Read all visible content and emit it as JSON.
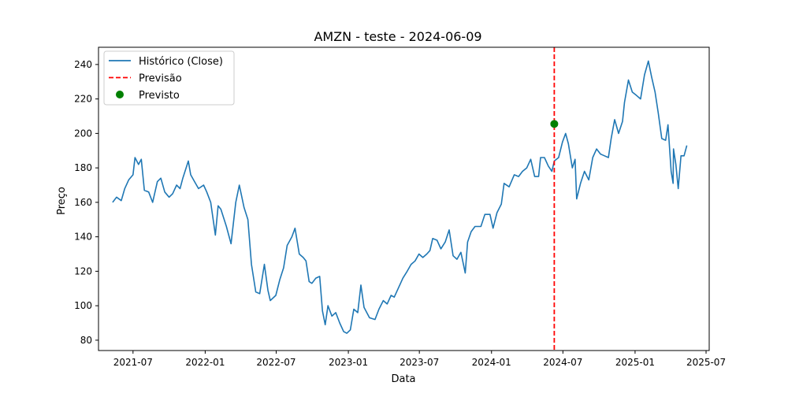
{
  "chart_data": {
    "type": "line",
    "title": "AMZN - teste - 2024-06-09",
    "xlabel": "Data",
    "ylabel": "Preço",
    "xlim": [
      "2021-04-04",
      "2025-07-09"
    ],
    "ylim": [
      74,
      250
    ],
    "x_ticks": [
      {
        "date": "2021-07-01",
        "label": "2021-07"
      },
      {
        "date": "2022-01-01",
        "label": "2022-01"
      },
      {
        "date": "2022-07-01",
        "label": "2022-07"
      },
      {
        "date": "2023-01-01",
        "label": "2023-01"
      },
      {
        "date": "2023-07-01",
        "label": "2023-07"
      },
      {
        "date": "2024-01-01",
        "label": "2024-01"
      },
      {
        "date": "2024-07-01",
        "label": "2024-07"
      },
      {
        "date": "2025-01-01",
        "label": "2025-01"
      },
      {
        "date": "2025-07-01",
        "label": "2025-07"
      }
    ],
    "y_ticks": [
      80,
      100,
      120,
      140,
      160,
      180,
      200,
      220,
      240
    ],
    "grid": false,
    "legend_position": "top-left",
    "legend": [
      {
        "label": "Histórico (Close)",
        "kind": "line",
        "color": "#1f77b4"
      },
      {
        "label": "Previsão",
        "kind": "dashed",
        "color": "#ff0000"
      },
      {
        "label": "Previsto",
        "kind": "marker",
        "color": "#008000"
      }
    ],
    "series": [
      {
        "name": "Histórico (Close)",
        "color": "#1f77b4",
        "points": [
          [
            "2021-05-10",
            160
          ],
          [
            "2021-05-20",
            163
          ],
          [
            "2021-06-01",
            161
          ],
          [
            "2021-06-10",
            168
          ],
          [
            "2021-06-20",
            173
          ],
          [
            "2021-07-01",
            176
          ],
          [
            "2021-07-06",
            186
          ],
          [
            "2021-07-15",
            182
          ],
          [
            "2021-07-22",
            185
          ],
          [
            "2021-07-30",
            167
          ],
          [
            "2021-08-10",
            166
          ],
          [
            "2021-08-20",
            160
          ],
          [
            "2021-09-01",
            172
          ],
          [
            "2021-09-10",
            174
          ],
          [
            "2021-09-20",
            166
          ],
          [
            "2021-10-01",
            163
          ],
          [
            "2021-10-10",
            165
          ],
          [
            "2021-10-20",
            170
          ],
          [
            "2021-10-29",
            168
          ],
          [
            "2021-11-05",
            174
          ],
          [
            "2021-11-19",
            184
          ],
          [
            "2021-11-25",
            176
          ],
          [
            "2021-12-05",
            172
          ],
          [
            "2021-12-15",
            168
          ],
          [
            "2021-12-28",
            170
          ],
          [
            "2022-01-05",
            166
          ],
          [
            "2022-01-15",
            160
          ],
          [
            "2022-01-27",
            141
          ],
          [
            "2022-02-03",
            158
          ],
          [
            "2022-02-10",
            156
          ],
          [
            "2022-02-24",
            146
          ],
          [
            "2022-03-08",
            136
          ],
          [
            "2022-03-20",
            160
          ],
          [
            "2022-03-29",
            170
          ],
          [
            "2022-04-10",
            157
          ],
          [
            "2022-04-20",
            150
          ],
          [
            "2022-04-29",
            124
          ],
          [
            "2022-05-10",
            108
          ],
          [
            "2022-05-20",
            107
          ],
          [
            "2022-06-01",
            124
          ],
          [
            "2022-06-10",
            109
          ],
          [
            "2022-06-16",
            103
          ],
          [
            "2022-06-30",
            106
          ],
          [
            "2022-07-10",
            115
          ],
          [
            "2022-07-20",
            122
          ],
          [
            "2022-07-29",
            135
          ],
          [
            "2022-08-10",
            140
          ],
          [
            "2022-08-18",
            145
          ],
          [
            "2022-08-29",
            130
          ],
          [
            "2022-09-08",
            128
          ],
          [
            "2022-09-15",
            126
          ],
          [
            "2022-09-23",
            114
          ],
          [
            "2022-09-30",
            113
          ],
          [
            "2022-10-10",
            116
          ],
          [
            "2022-10-20",
            117
          ],
          [
            "2022-10-27",
            97
          ],
          [
            "2022-11-03",
            89
          ],
          [
            "2022-11-10",
            100
          ],
          [
            "2022-11-20",
            94
          ],
          [
            "2022-11-30",
            96
          ],
          [
            "2022-12-10",
            90
          ],
          [
            "2022-12-20",
            85
          ],
          [
            "2022-12-28",
            84
          ],
          [
            "2023-01-06",
            86
          ],
          [
            "2023-01-15",
            98
          ],
          [
            "2023-01-25",
            96
          ],
          [
            "2023-02-02",
            112
          ],
          [
            "2023-02-10",
            99
          ],
          [
            "2023-02-24",
            93
          ],
          [
            "2023-03-10",
            92
          ],
          [
            "2023-03-20",
            98
          ],
          [
            "2023-03-31",
            103
          ],
          [
            "2023-04-10",
            101
          ],
          [
            "2023-04-20",
            106
          ],
          [
            "2023-04-28",
            105
          ],
          [
            "2023-05-10",
            111
          ],
          [
            "2023-05-20",
            116
          ],
          [
            "2023-05-31",
            120
          ],
          [
            "2023-06-10",
            124
          ],
          [
            "2023-06-20",
            126
          ],
          [
            "2023-06-30",
            130
          ],
          [
            "2023-07-10",
            128
          ],
          [
            "2023-07-20",
            130
          ],
          [
            "2023-07-28",
            132
          ],
          [
            "2023-08-04",
            139
          ],
          [
            "2023-08-15",
            138
          ],
          [
            "2023-08-25",
            133
          ],
          [
            "2023-09-05",
            137
          ],
          [
            "2023-09-15",
            144
          ],
          [
            "2023-09-25",
            129
          ],
          [
            "2023-10-05",
            127
          ],
          [
            "2023-10-15",
            131
          ],
          [
            "2023-10-26",
            119
          ],
          [
            "2023-11-01",
            137
          ],
          [
            "2023-11-10",
            143
          ],
          [
            "2023-11-20",
            146
          ],
          [
            "2023-12-05",
            146
          ],
          [
            "2023-12-15",
            153
          ],
          [
            "2023-12-28",
            153
          ],
          [
            "2024-01-05",
            145
          ],
          [
            "2024-01-15",
            154
          ],
          [
            "2024-01-26",
            159
          ],
          [
            "2024-02-02",
            171
          ],
          [
            "2024-02-15",
            169
          ],
          [
            "2024-02-28",
            176
          ],
          [
            "2024-03-10",
            175
          ],
          [
            "2024-03-20",
            178
          ],
          [
            "2024-03-31",
            180
          ],
          [
            "2024-04-10",
            185
          ],
          [
            "2024-04-20",
            175
          ],
          [
            "2024-04-30",
            175
          ],
          [
            "2024-05-05",
            186
          ],
          [
            "2024-05-15",
            186
          ],
          [
            "2024-05-25",
            181
          ],
          [
            "2024-06-03",
            178
          ],
          [
            "2024-06-09",
            184
          ],
          [
            "2024-06-20",
            186
          ],
          [
            "2024-06-30",
            195
          ],
          [
            "2024-07-08",
            200
          ],
          [
            "2024-07-15",
            194
          ],
          [
            "2024-07-25",
            180
          ],
          [
            "2024-08-01",
            185
          ],
          [
            "2024-08-05",
            162
          ],
          [
            "2024-08-15",
            171
          ],
          [
            "2024-08-25",
            178
          ],
          [
            "2024-09-05",
            173
          ],
          [
            "2024-09-15",
            186
          ],
          [
            "2024-09-25",
            191
          ],
          [
            "2024-10-05",
            188
          ],
          [
            "2024-10-15",
            187
          ],
          [
            "2024-10-25",
            186
          ],
          [
            "2024-11-01",
            197
          ],
          [
            "2024-11-10",
            208
          ],
          [
            "2024-11-20",
            200
          ],
          [
            "2024-11-30",
            207
          ],
          [
            "2024-12-05",
            218
          ],
          [
            "2024-12-15",
            231
          ],
          [
            "2024-12-25",
            224
          ],
          [
            "2025-01-05",
            222
          ],
          [
            "2025-01-15",
            220
          ],
          [
            "2025-01-25",
            234
          ],
          [
            "2025-02-04",
            242
          ],
          [
            "2025-02-12",
            233
          ],
          [
            "2025-02-21",
            224
          ],
          [
            "2025-03-01",
            212
          ],
          [
            "2025-03-10",
            197
          ],
          [
            "2025-03-20",
            196
          ],
          [
            "2025-03-26",
            205
          ],
          [
            "2025-04-03",
            178
          ],
          [
            "2025-04-08",
            171
          ],
          [
            "2025-04-09",
            191
          ],
          [
            "2025-04-15",
            182
          ],
          [
            "2025-04-21",
            168
          ],
          [
            "2025-04-28",
            187
          ],
          [
            "2025-05-06",
            187
          ],
          [
            "2025-05-13",
            193
          ]
        ]
      }
    ],
    "forecast_line": {
      "label": "Previsão",
      "date": "2024-06-09",
      "color": "#ff0000"
    },
    "forecast_point": {
      "label": "Previsto",
      "date": "2024-06-09",
      "value": 205.5,
      "color": "#008000"
    }
  }
}
